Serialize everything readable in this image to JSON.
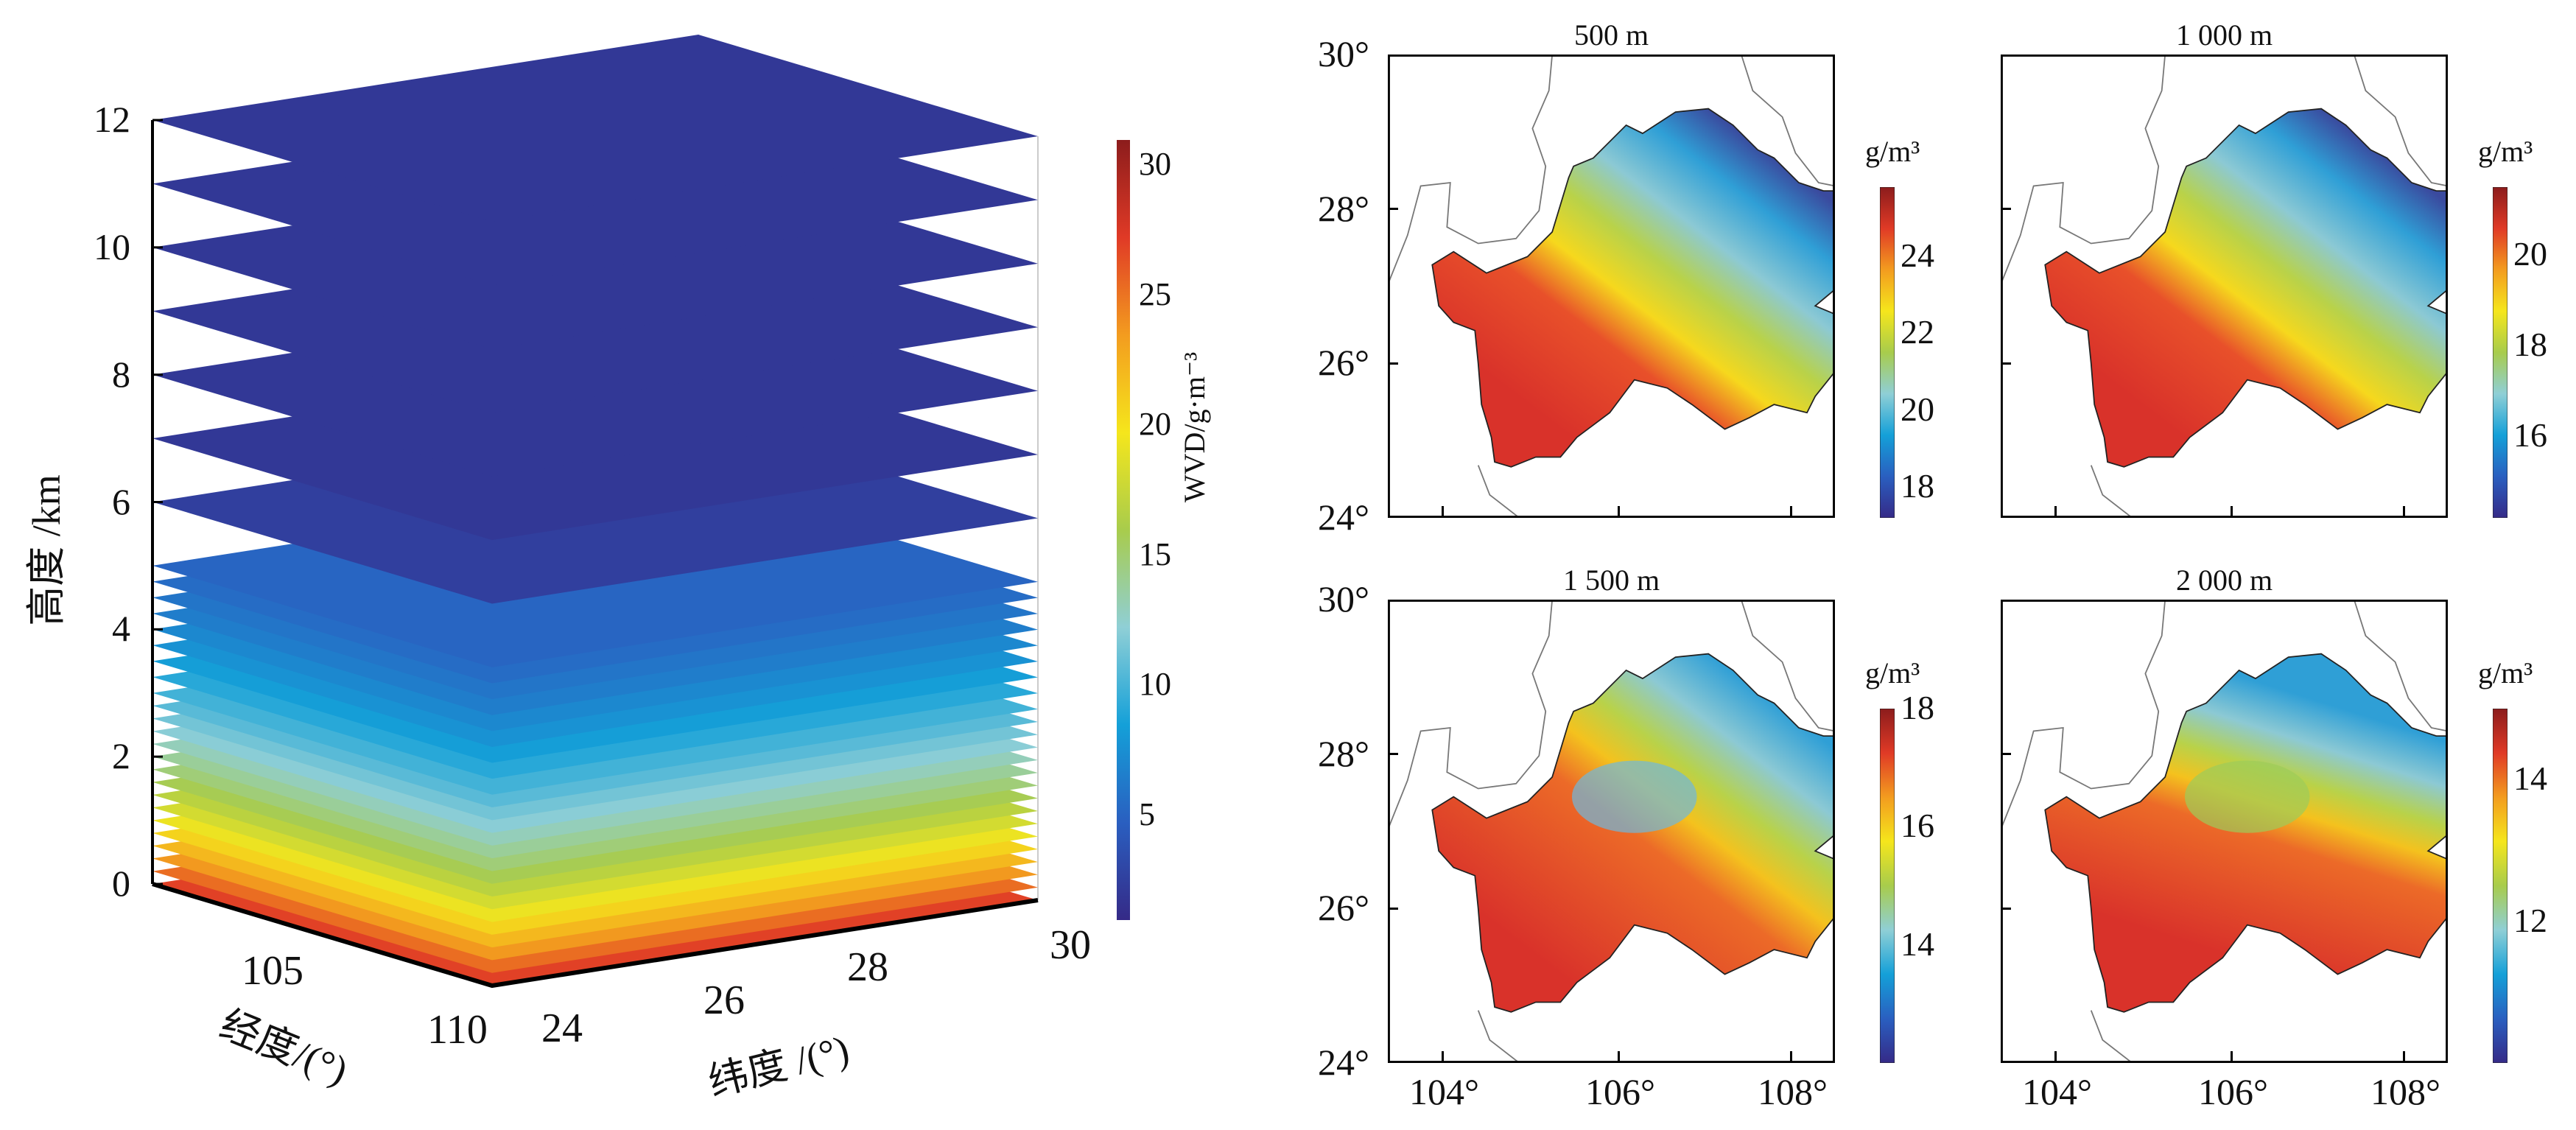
{
  "chart_data": [
    {
      "type": "heatmap",
      "subtype": "stacked-3d-layers",
      "xlabel": "经度/(°)",
      "ylabel": "纬度 /(°)",
      "zlabel": "高度 /km",
      "x_ticks": [
        "105",
        "110"
      ],
      "y_ticks": [
        "24",
        "26",
        "28",
        "30"
      ],
      "z_ticks": [
        "0",
        "2",
        "4",
        "6",
        "8",
        "10",
        "12"
      ],
      "zlim": [
        0,
        12
      ],
      "xlim": [
        103,
        110
      ],
      "ylim": [
        24,
        30
      ],
      "colorbar": {
        "label": "WVD/g·m⁻³",
        "ticks": [
          "5",
          "10",
          "15",
          "20",
          "25",
          "30"
        ],
        "range": [
          1,
          31
        ]
      },
      "layers": {
        "heights_km": [
          0,
          0.2,
          0.4,
          0.6,
          0.8,
          1.0,
          1.2,
          1.4,
          1.6,
          1.8,
          2.0,
          2.2,
          2.4,
          2.6,
          2.8,
          3.0,
          3.25,
          3.5,
          3.75,
          4.0,
          4.25,
          4.5,
          4.75,
          5.0,
          6,
          7,
          8,
          9,
          10,
          11,
          12
        ],
        "wvd_g_m3": [
          27.0,
          25.3,
          23.6,
          22.1,
          20.7,
          19.3,
          18.1,
          16.9,
          15.8,
          14.8,
          13.9,
          13.0,
          12.1,
          11.4,
          10.6,
          9.9,
          9.1,
          8.4,
          7.7,
          7.1,
          6.5,
          6.0,
          5.5,
          5.1,
          2.5,
          2,
          2,
          2,
          2,
          2,
          2
        ]
      }
    },
    {
      "type": "heatmap",
      "title": "500 m",
      "lat_ticks": [
        "30°",
        "28°",
        "26°",
        "24°"
      ],
      "lon_ticks": [],
      "colorbar": {
        "unit": "g/m³",
        "ticks": [
          "24",
          "22",
          "20",
          "18"
        ],
        "range": [
          17.2,
          25.8
        ]
      },
      "pattern": "west-high"
    },
    {
      "type": "heatmap",
      "title": "1 000 m",
      "lat_ticks": [],
      "lon_ticks": [],
      "colorbar": {
        "unit": "g/m³",
        "ticks": [
          "20",
          "18",
          "16"
        ],
        "range": [
          14.2,
          21.5
        ]
      },
      "pattern": "west-high"
    },
    {
      "type": "heatmap",
      "title": "1 500 m",
      "lat_ticks": [
        "30°",
        "28°",
        "26°",
        "24°"
      ],
      "lon_ticks": [
        "104°",
        "106°",
        "108°"
      ],
      "colorbar": {
        "unit": "g/m³",
        "ticks": [
          "18",
          "16",
          "14"
        ],
        "range": [
          12.0,
          18.0
        ]
      },
      "pattern": "south-high"
    },
    {
      "type": "heatmap",
      "title": "2 000 m",
      "lat_ticks": [],
      "lon_ticks": [
        "104°",
        "106°",
        "108°"
      ],
      "colorbar": {
        "unit": "g/m³",
        "ticks": [
          "14",
          "12"
        ],
        "range": [
          10.0,
          15.0
        ]
      },
      "pattern": "south-high"
    }
  ],
  "colormap": [
    "#352a87",
    "#2a5fc0",
    "#14a0d8",
    "#8fcfd6",
    "#a8cc4c",
    "#f5e61c",
    "#f39c1f",
    "#e03a26",
    "#8c1c1c"
  ]
}
